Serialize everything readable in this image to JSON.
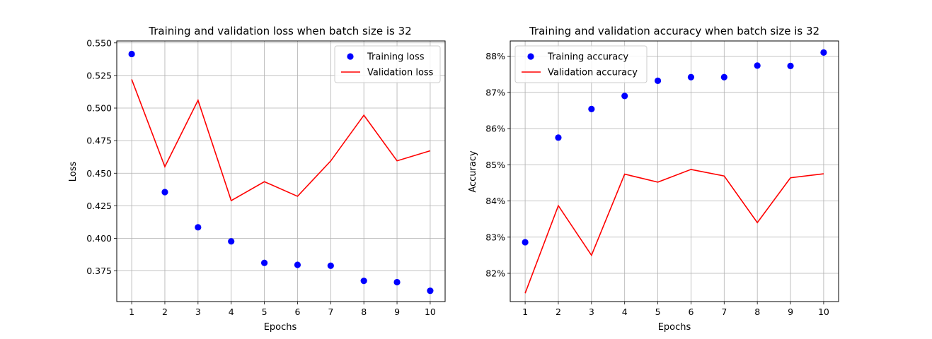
{
  "chart_data": [
    {
      "type": "line",
      "title": "Training and validation loss when batch size is 32",
      "xlabel": "Epochs",
      "ylabel": "Loss",
      "x": [
        1,
        2,
        3,
        4,
        5,
        6,
        7,
        8,
        9,
        10
      ],
      "xlim": [
        0.55,
        10.45
      ],
      "ylim": [
        0.3515,
        0.5515
      ],
      "yticks": [
        0.375,
        0.4,
        0.425,
        0.45,
        0.475,
        0.5,
        0.525,
        0.55
      ],
      "ytick_labels": [
        "0.375",
        "0.400",
        "0.425",
        "0.450",
        "0.475",
        "0.500",
        "0.525",
        "0.550"
      ],
      "grid": true,
      "legend_position": "top-right",
      "series": [
        {
          "name": "Training loss",
          "style": "points",
          "color": "#0000ff",
          "values": [
            0.5415,
            0.4355,
            0.4085,
            0.3977,
            0.3812,
            0.3797,
            0.379,
            0.3674,
            0.3664,
            0.3598
          ]
        },
        {
          "name": "Validation loss",
          "style": "line",
          "color": "#ff0000",
          "values": [
            0.522,
            0.455,
            0.506,
            0.429,
            0.4435,
            0.4323,
            0.4594,
            0.4945,
            0.4595,
            0.4672
          ]
        }
      ]
    },
    {
      "type": "line",
      "title": "Training and validation accuracy when batch size is 32",
      "xlabel": "Epochs",
      "ylabel": "Accuracy",
      "x": [
        1,
        2,
        3,
        4,
        5,
        6,
        7,
        8,
        9,
        10
      ],
      "xlim": [
        0.55,
        10.45
      ],
      "ylim": [
        0.8122,
        0.8842
      ],
      "yticks": [
        0.82,
        0.83,
        0.84,
        0.85,
        0.86,
        0.87,
        0.88
      ],
      "ytick_labels": [
        "82%",
        "83%",
        "84%",
        "85%",
        "86%",
        "87%",
        "88%"
      ],
      "grid": true,
      "legend_position": "top-left",
      "series": [
        {
          "name": "Training accuracy",
          "style": "points",
          "color": "#0000ff",
          "values": [
            0.8286,
            0.8575,
            0.8654,
            0.869,
            0.8732,
            0.8742,
            0.8742,
            0.8774,
            0.8773,
            0.881
          ]
        },
        {
          "name": "Validation accuracy",
          "style": "line",
          "color": "#ff0000",
          "values": [
            0.8145,
            0.8387,
            0.825,
            0.8474,
            0.8452,
            0.8487,
            0.8469,
            0.834,
            0.8464,
            0.8475
          ]
        }
      ]
    }
  ]
}
